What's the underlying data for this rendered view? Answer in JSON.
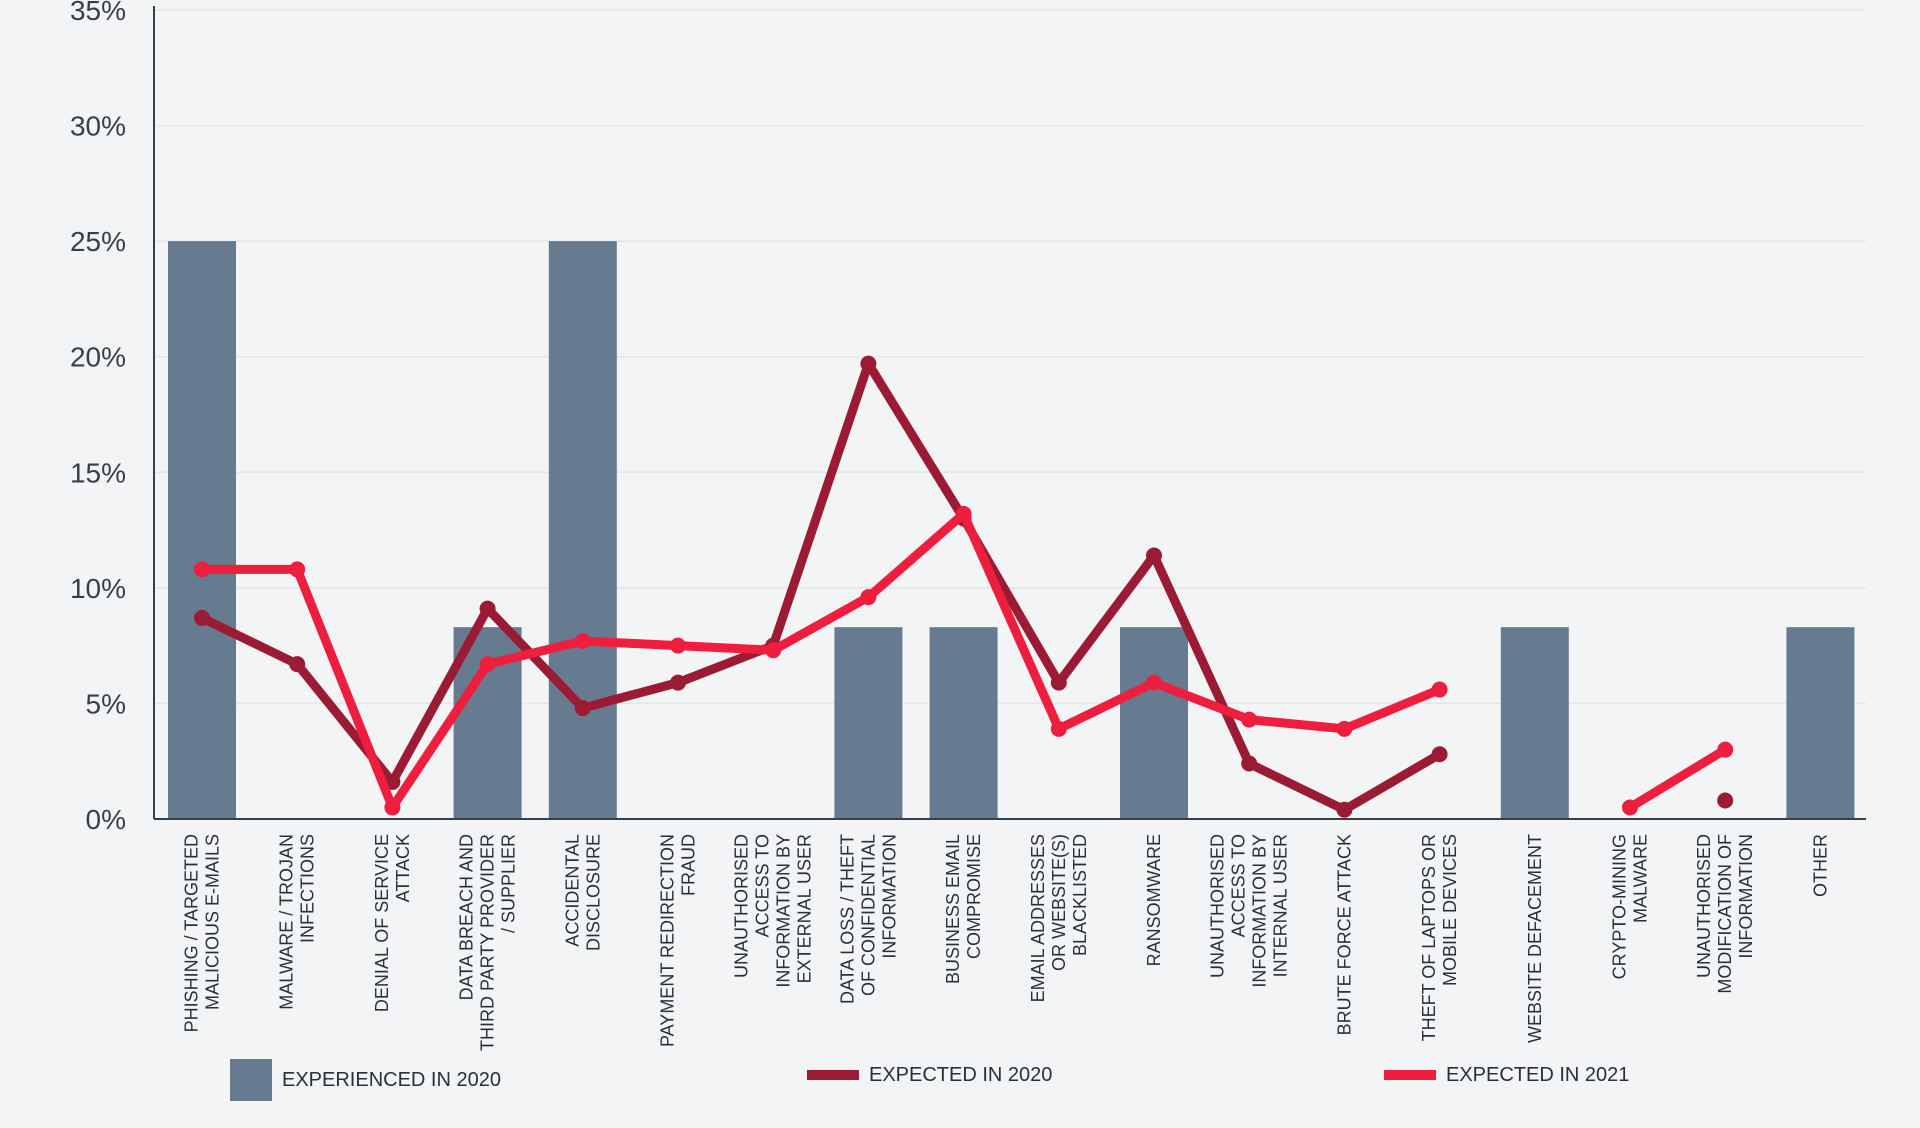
{
  "chart_data": {
    "type": "bar",
    "title": "",
    "xlabel": "",
    "ylabel": "",
    "ylim": [
      0,
      35
    ],
    "y_ticks": [
      "0%",
      "5%",
      "10%",
      "15%",
      "20%",
      "25%",
      "30%",
      "35%"
    ],
    "y_tick_values": [
      0,
      5,
      10,
      15,
      20,
      25,
      30,
      35
    ],
    "grid": true,
    "legend_position": "bottom",
    "categories": [
      [
        "PHISHING / TARGETED",
        "MALICIOUS E-MAILS"
      ],
      [
        "MALWARE / TROJAN",
        "INFECTIONS"
      ],
      [
        "DENIAL OF SERVICE",
        "ATTACK"
      ],
      [
        "DATA BREACH AND",
        "THIRD PARTY PROVIDER",
        "/ SUPPLIER"
      ],
      [
        "ACCIDENTAL",
        "DISCLOSURE"
      ],
      [
        "PAYMENT REDIRECTION",
        "FRAUD"
      ],
      [
        "UNAUTHORISED",
        "ACCESS TO",
        "INFORMATION BY",
        "EXTERNAL USER"
      ],
      [
        "DATA LOSS / THEFT",
        "OF CONFIDENTIAL",
        "INFORMATION"
      ],
      [
        "BUSINESS EMAIL",
        "COMPROMISE"
      ],
      [
        "EMAIL ADDRESSES",
        "OR WEBSITE(S)",
        "BLACKLISTED"
      ],
      [
        "RANSOMWARE"
      ],
      [
        "UNAUTHORISED",
        "ACCESS TO",
        "INFORMATION BY",
        "INTERNAL USER"
      ],
      [
        "BRUTE FORCE ATTACK"
      ],
      [
        "THEFT OF LAPTOPS OR",
        "MOBILE DEVICES"
      ],
      [
        "WEBSITE DEFACEMENT"
      ],
      [
        "CRYPTO-MINING",
        "MALWARE"
      ],
      [
        "UNAUTHORISED",
        "MODIFICATION OF",
        "INFORMATION"
      ],
      [
        "OTHER"
      ]
    ],
    "series": [
      {
        "name": "EXPERIENCED IN 2020",
        "type": "bar",
        "color": "#667b90",
        "values": [
          25,
          null,
          null,
          8.3,
          25,
          null,
          null,
          8.3,
          8.3,
          null,
          8.3,
          null,
          null,
          null,
          8.3,
          null,
          null,
          8.3
        ]
      },
      {
        "name": "EXPECTED IN 2020",
        "type": "line",
        "color": "#9b1b35",
        "values": [
          8.7,
          6.7,
          1.6,
          9.1,
          4.8,
          5.9,
          7.5,
          19.7,
          13.0,
          5.9,
          11.4,
          2.4,
          0.4,
          2.8,
          null,
          null,
          0.8,
          null
        ]
      },
      {
        "name": "EXPECTED IN 2021",
        "type": "line",
        "color": "#ee1f3e",
        "values": [
          10.8,
          10.8,
          0.5,
          6.7,
          7.7,
          7.5,
          7.3,
          9.6,
          13.2,
          3.9,
          5.9,
          4.3,
          3.9,
          5.6,
          null,
          0.5,
          3.0,
          null
        ]
      }
    ]
  },
  "legend": {
    "experienced_2020": "EXPERIENCED IN 2020",
    "expected_2020": "EXPECTED IN 2020",
    "expected_2021": "EXPECTED IN 2021"
  }
}
